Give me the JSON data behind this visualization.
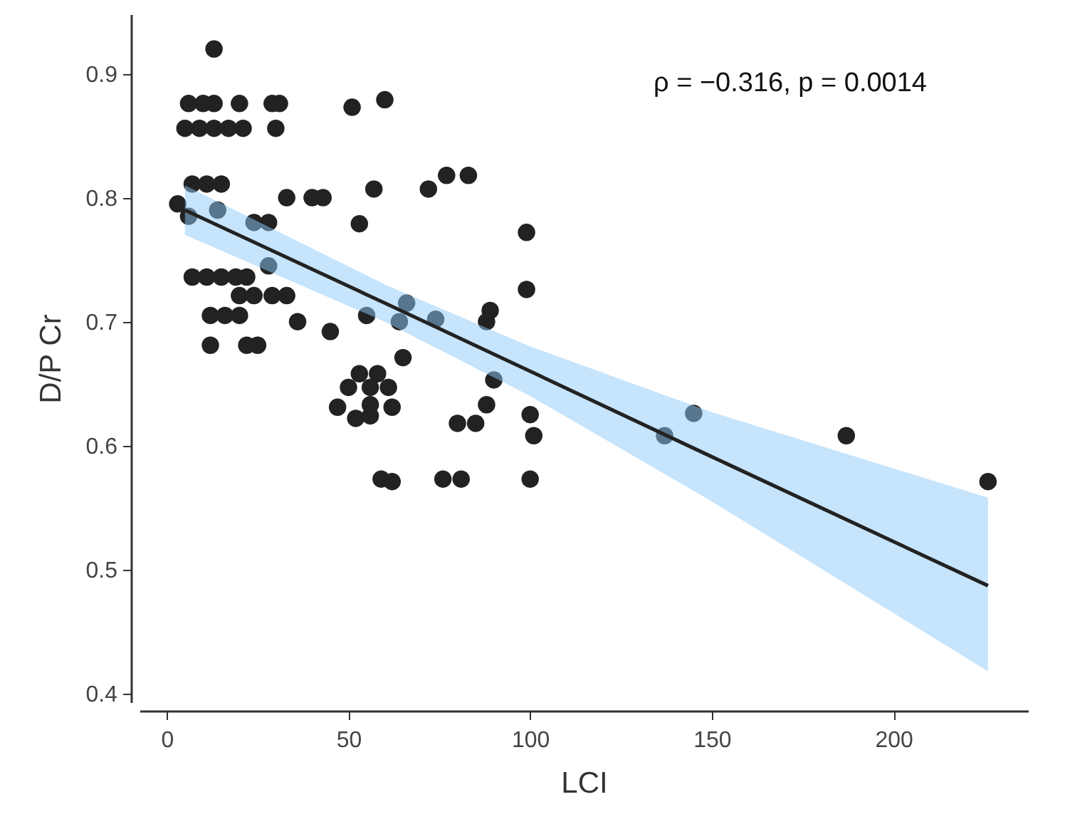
{
  "chart_data": {
    "type": "scatter",
    "xlabel": "LCI",
    "ylabel": "D/P Cr",
    "annotations": [
      "ρ = −0.316, p = 0.0014"
    ],
    "xlim": [
      -7.5,
      237
    ],
    "ylim": [
      0.393,
      0.948
    ],
    "xticks": [
      0,
      50,
      100,
      150,
      200
    ],
    "yticks": [
      0.4,
      0.5,
      0.6,
      0.7,
      0.8,
      0.9
    ],
    "grid": false,
    "series": [
      {
        "color": "#222222",
        "marker": "circle",
        "x": [
          13,
          6,
          10,
          13,
          20,
          29,
          31,
          5,
          9,
          13,
          17,
          21,
          30,
          7,
          11,
          15,
          3,
          33,
          6,
          14,
          24,
          28,
          28,
          7,
          11,
          15,
          19,
          22,
          20,
          24,
          29,
          33,
          12,
          16,
          20,
          36,
          12,
          22,
          25,
          40,
          43,
          57,
          72,
          77,
          83,
          53,
          99,
          99,
          45,
          55,
          66,
          64,
          74,
          89,
          88,
          65,
          90,
          53,
          58,
          50,
          56,
          61,
          47,
          56,
          62,
          52,
          56,
          88,
          80,
          85,
          100,
          101,
          59,
          62,
          76,
          81,
          100,
          51,
          60,
          145,
          137,
          187,
          226
        ],
        "values": [
          0.92,
          0.876,
          0.876,
          0.876,
          0.876,
          0.876,
          0.876,
          0.856,
          0.856,
          0.856,
          0.856,
          0.856,
          0.856,
          0.811,
          0.811,
          0.811,
          0.795,
          0.8,
          0.785,
          0.79,
          0.78,
          0.78,
          0.745,
          0.736,
          0.736,
          0.736,
          0.736,
          0.736,
          0.721,
          0.721,
          0.721,
          0.721,
          0.705,
          0.705,
          0.705,
          0.7,
          0.681,
          0.681,
          0.681,
          0.8,
          0.8,
          0.807,
          0.807,
          0.818,
          0.818,
          0.779,
          0.772,
          0.726,
          0.692,
          0.705,
          0.715,
          0.7,
          0.702,
          0.709,
          0.7,
          0.671,
          0.653,
          0.658,
          0.658,
          0.647,
          0.647,
          0.647,
          0.631,
          0.633,
          0.631,
          0.622,
          0.624,
          0.633,
          0.618,
          0.618,
          0.625,
          0.608,
          0.573,
          0.571,
          0.573,
          0.573,
          0.573,
          0.873,
          0.879,
          0.626,
          0.608,
          0.608,
          0.571
        ]
      },
      {
        "type": "line",
        "marker": "none",
        "color": "#222222",
        "x": [
          5,
          60,
          100,
          150,
          226
        ],
        "values": [
          0.79,
          0.715,
          0.66,
          0.591,
          0.487
        ],
        "lower": [
          0.77,
          0.7,
          0.64,
          0.555,
          0.418
        ],
        "upper": [
          0.81,
          0.73,
          0.68,
          0.627,
          0.558
        ]
      }
    ]
  }
}
